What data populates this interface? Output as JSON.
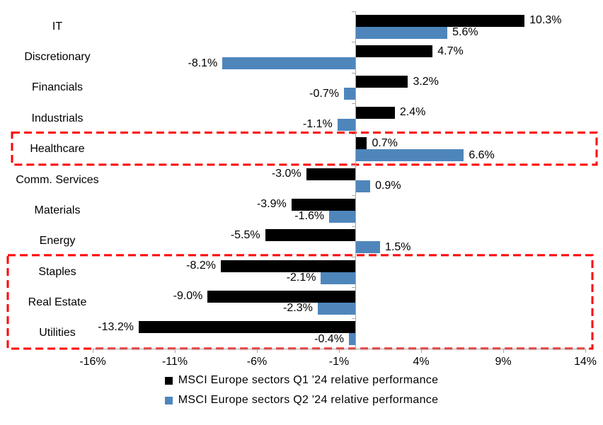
{
  "chart_data": {
    "type": "bar",
    "orientation": "horizontal",
    "title": "",
    "categories": [
      "IT",
      "Discretionary",
      "Financials",
      "Industrials",
      "Healthcare",
      "Comm. Services",
      "Materials",
      "Energy",
      "Staples",
      "Real Estate",
      "Utilities"
    ],
    "series": [
      {
        "name": "MSCI Europe sectors Q1 '24 relative performance",
        "color": "#000000",
        "values": [
          10.3,
          4.7,
          3.2,
          2.4,
          0.7,
          -3.0,
          -3.9,
          -5.5,
          -8.2,
          -9.0,
          -13.2
        ]
      },
      {
        "name": "MSCI Europe sectors Q2 '24 relative performance",
        "color": "#4e86bc",
        "values": [
          5.6,
          -8.1,
          -0.7,
          -1.1,
          6.6,
          0.9,
          -1.6,
          1.5,
          -2.1,
          -2.3,
          -0.4
        ]
      }
    ],
    "data_labels": true,
    "data_label_format": "0.0%",
    "x_tick_labels": [
      "-16%",
      "-11%",
      "-6%",
      "-1%",
      "4%",
      "9%",
      "14%"
    ],
    "xlim": [
      -16,
      14
    ],
    "x_major_unit": 5,
    "grid": "off",
    "legend_position": "bottom",
    "axis_color": "#a6a6a6",
    "background_color": "#ffffff",
    "annotations": [
      {
        "type": "dashed-highlight-box",
        "color": "#ff0000",
        "categories": [
          "Healthcare"
        ]
      },
      {
        "type": "dashed-highlight-box",
        "color": "#ff0000",
        "categories": [
          "Staples",
          "Real Estate",
          "Utilities"
        ]
      }
    ]
  }
}
